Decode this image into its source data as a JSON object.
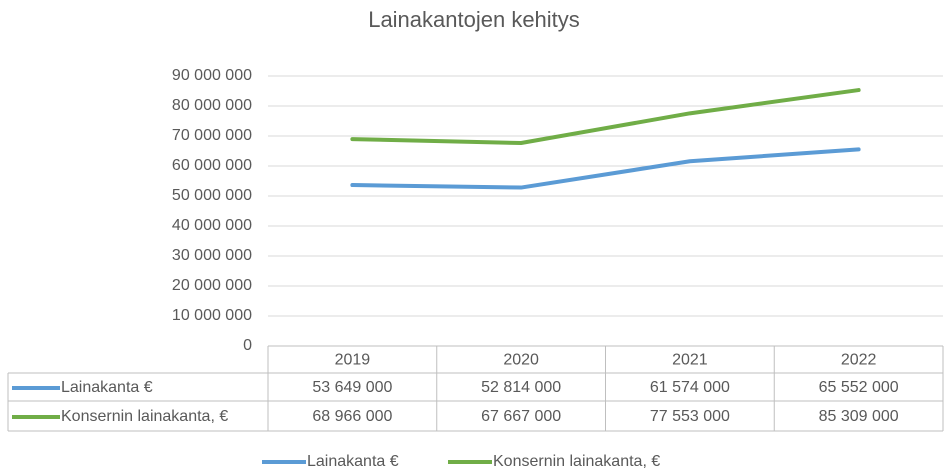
{
  "chart_data": {
    "type": "line",
    "title": "Lainakantojen kehitys",
    "categories": [
      "2019",
      "2020",
      "2021",
      "2022"
    ],
    "series": [
      {
        "name": "Lainakanta €",
        "color": "#5b9bd5",
        "values": [
          53649000,
          52814000,
          61574000,
          65552000
        ],
        "value_labels": [
          "53 649 000",
          "52 814 000",
          "61 574 000",
          "65 552 000"
        ]
      },
      {
        "name": "Konsernin lainakanta, €",
        "color": "#70ad47",
        "values": [
          68966000,
          67667000,
          77553000,
          85309000
        ],
        "value_labels": [
          "68 966 000",
          "67 667 000",
          "77 553 000",
          "85 309 000"
        ]
      }
    ],
    "ylim": [
      0,
      90000000
    ],
    "yticks": [
      0,
      {
        "value": 10000000,
        "label": "10 000 000"
      },
      {
        "value": 20000000,
        "label": "20 000 000"
      },
      {
        "value": 30000000,
        "label": "30 000 000"
      },
      {
        "value": 40000000,
        "label": "40 000 000"
      },
      {
        "value": 50000000,
        "label": "50 000 000"
      },
      {
        "value": 60000000,
        "label": "60 000 000"
      },
      {
        "value": 70000000,
        "label": "70 000 000"
      },
      {
        "value": 80000000,
        "label": "80 000 000"
      },
      {
        "value": 90000000,
        "label": "90 000 000"
      }
    ],
    "grid": true,
    "legend": "bottom"
  }
}
